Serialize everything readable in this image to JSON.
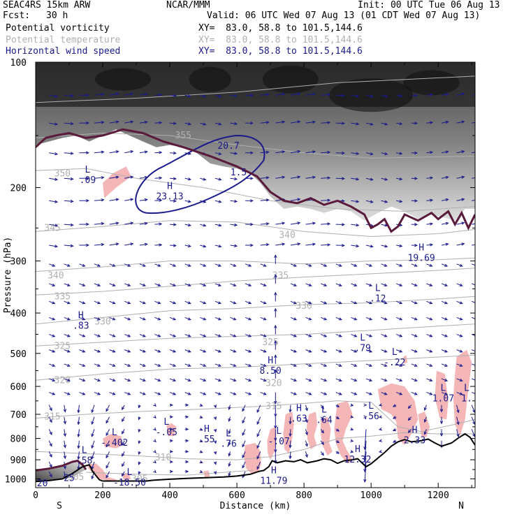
{
  "header": {
    "model": "SEAC4RS 15km ARW",
    "institution": "NCAR/MMM",
    "init": "Init: 00 UTC Tue 06 Aug 13",
    "fcst_label": "Fcst:",
    "fcst_value": "30 h",
    "valid": "Valid: 06 UTC Wed 07 Aug 13 (01 CDT Wed 07 Aug 13)",
    "fields": [
      {
        "name": "Potential vorticity",
        "xy": "XY=  83.0, 58.8 to 101.5,144.6",
        "color": "#000000"
      },
      {
        "name": "Potential temperature",
        "xy": "XY=  83.0, 58.8 to 101.5,144.6",
        "color": "#b0b0b0"
      },
      {
        "name": "Horizontal wind speed",
        "xy": "XY=  83.0, 58.8 to 101.5,144.6",
        "color": "#1a1a8c"
      }
    ]
  },
  "chart_data": {
    "type": "cross-section",
    "xlabel": "Distance (km)",
    "ylabel": "Pressure (hPa)",
    "xlim": [
      0,
      1310
    ],
    "ylim": [
      1050,
      100
    ],
    "y_scale": "log",
    "xticks": [
      "0",
      "200",
      "400",
      "600",
      "800",
      "1000",
      "1200"
    ],
    "yticks": [
      "100",
      "200",
      "300",
      "400",
      "500",
      "600",
      "700",
      "800",
      "900",
      "1000"
    ],
    "left_end_label": "S",
    "right_end_label": "N",
    "colors": {
      "theta": "#b0b0b0",
      "wind_speed": "#1a1a8c",
      "wind_arrows": "#1a1a8c",
      "pv_shading": "#f4b6b6",
      "pv_2pvu": "#5a1a3c",
      "terrain": "#000000"
    },
    "theta_contours": [
      {
        "label": "355",
        "x": 440,
        "p": 150
      },
      {
        "label": "350",
        "x": 80,
        "p": 185
      },
      {
        "label": "345",
        "x": 50,
        "p": 250
      },
      {
        "label": "340",
        "x": 750,
        "p": 260
      },
      {
        "label": "340",
        "x": 60,
        "p": 325
      },
      {
        "label": "335",
        "x": 730,
        "p": 325
      },
      {
        "label": "335",
        "x": 80,
        "p": 365
      },
      {
        "label": "330",
        "x": 200,
        "p": 420
      },
      {
        "label": "330",
        "x": 800,
        "p": 385
      },
      {
        "label": "325",
        "x": 80,
        "p": 480
      },
      {
        "label": "325",
        "x": 700,
        "p": 470
      },
      {
        "label": "320",
        "x": 80,
        "p": 580
      },
      {
        "label": "320",
        "x": 710,
        "p": 590
      },
      {
        "label": "315",
        "x": 50,
        "p": 710
      },
      {
        "label": "315",
        "x": 710,
        "p": 670
      },
      {
        "label": "310",
        "x": 380,
        "p": 890
      },
      {
        "label": "305",
        "x": 120,
        "p": 990
      },
      {
        "label": "305",
        "x": 310,
        "p": 1000
      }
    ],
    "speed_extrema": [
      {
        "label": "H",
        "value": "23.13",
        "x": 400,
        "p": 208
      },
      {
        "label": "",
        "value": "20.7",
        "x": 575,
        "p": 157
      },
      {
        "label": "",
        "value": "1.5",
        "x": 605,
        "p": 182
      },
      {
        "label": "H",
        "value": "19.69",
        "x": 1150,
        "p": 292
      },
      {
        "label": "H",
        "value": "8.50",
        "x": 700,
        "p": 545
      },
      {
        "label": "H",
        "value": "11.79",
        "x": 710,
        "p": 1000
      },
      {
        "label": "H",
        "value": "12.32",
        "x": 960,
        "p": 890
      },
      {
        "label": "H",
        "value": "2.33",
        "x": 1130,
        "p": 800
      }
    ],
    "pv_extrema": [
      {
        "label": "L",
        "value": ".09",
        "x": 155,
        "p": 190
      },
      {
        "label": "L",
        "value": ".12",
        "x": 1020,
        "p": 365
      },
      {
        "label": "H",
        "value": ".83",
        "x": 135,
        "p": 425
      },
      {
        "label": "L",
        "value": ".79",
        "x": 975,
        "p": 480
      },
      {
        "label": "L",
        "value": "-.22",
        "x": 1070,
        "p": 520
      },
      {
        "label": "L",
        "value": "1.07",
        "x": 1215,
        "p": 635
      },
      {
        "label": "L",
        "value": "1.",
        "x": 1285,
        "p": 635
      },
      {
        "label": "H",
        "value": ".63",
        "x": 785,
        "p": 710
      },
      {
        "label": "L",
        "value": ".64",
        "x": 860,
        "p": 715
      },
      {
        "label": "L",
        "value": ".56",
        "x": 1000,
        "p": 700
      },
      {
        "label": "L",
        "value": "-.05",
        "x": 390,
        "p": 765
      },
      {
        "label": "L",
        "value": "-.402",
        "x": 235,
        "p": 810
      },
      {
        "label": "H",
        "value": ".55",
        "x": 510,
        "p": 795
      },
      {
        "label": "L",
        "value": ".76",
        "x": 575,
        "p": 815
      },
      {
        "label": "L",
        "value": "-.07",
        "x": 725,
        "p": 805
      },
      {
        "label": "L",
        "value": ".58",
        "x": 145,
        "p": 895
      },
      {
        "label": "L",
        "value": "-18.50",
        "x": 280,
        "p": 1010
      },
      {
        "label": "",
        "value": "20",
        "x": 20,
        "p": 1015
      },
      {
        "label": "",
        "value": "25",
        "x": 100,
        "p": 985
      }
    ],
    "grid": false,
    "legend": "top-left"
  }
}
